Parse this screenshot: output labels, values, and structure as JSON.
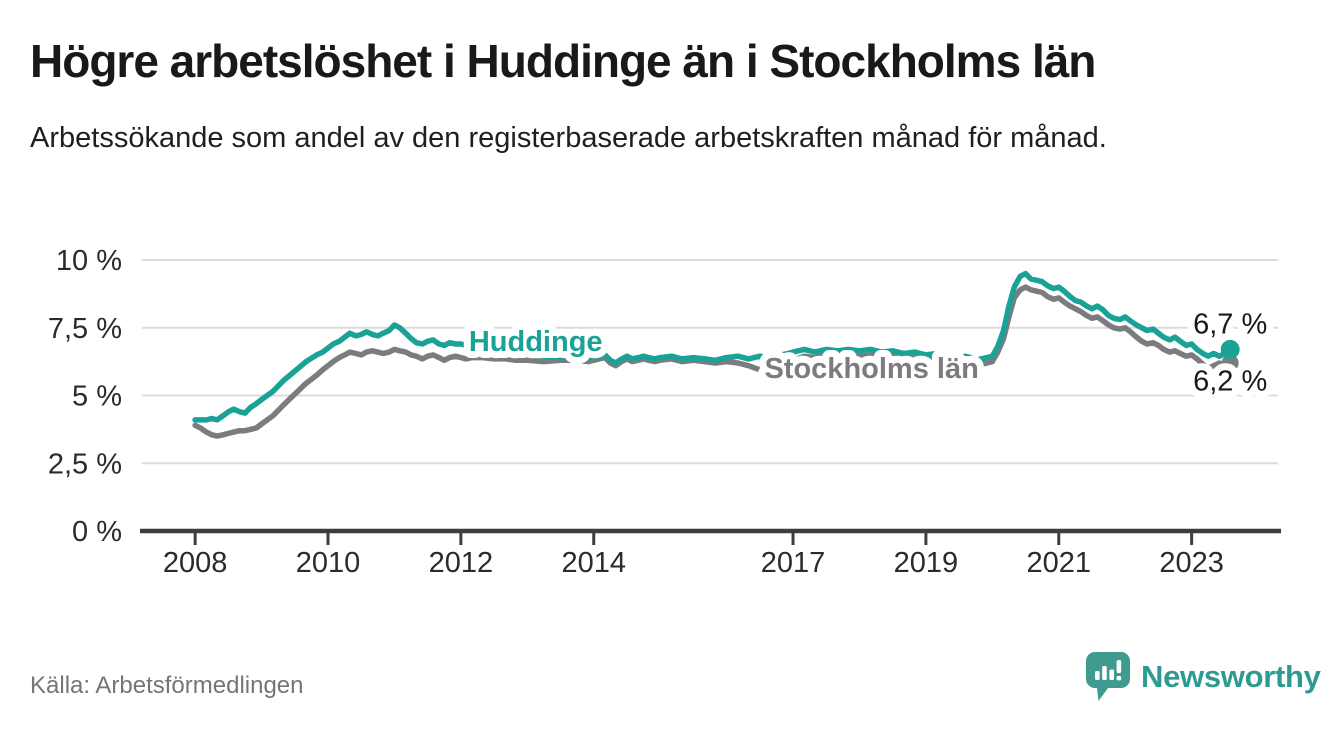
{
  "header": {
    "title": "Högre arbetslöshet i Huddinge än i Stockholms län",
    "subtitle": "Arbetssökande som andel av den registerbaserade arbetskraften månad för månad."
  },
  "footer": {
    "source": "Källa: Arbetsförmedlingen",
    "logo_text": "Newsworthy",
    "logo_icon": "newsworthy-speech-bubble-bar-chart-icon"
  },
  "colors": {
    "huddinge": "#1aa296",
    "stockholm": "#7c7c80",
    "grid": "#dcdcdc",
    "axis": "#3d3d3d",
    "text": "#191919",
    "tick_text": "#2b2b2b",
    "muted": "#757575",
    "logo": "#3f9b90"
  },
  "chart_data": {
    "type": "line",
    "title": "Högre arbetslöshet i Huddinge än i Stockholms län",
    "subtitle": "Arbetssökande som andel av den registerbaserade arbetskraften månad för månad.",
    "xlabel": "",
    "ylabel": "",
    "grid": "horizontal",
    "legend_position": "inline-labels",
    "xlim": [
      2007.2,
      2024.3
    ],
    "ylim": [
      0,
      10
    ],
    "x_ticks": [
      2008,
      2010,
      2012,
      2014,
      2017,
      2019,
      2021,
      2023
    ],
    "x_tick_labels": [
      "2008",
      "2010",
      "2012",
      "2014",
      "2017",
      "2019",
      "2021",
      "2023"
    ],
    "y_ticks": [
      0,
      2.5,
      5,
      7.5,
      10
    ],
    "y_tick_labels": [
      "0 %",
      "2,5 %",
      "5 %",
      "7,5 %",
      "10 %"
    ],
    "series": [
      {
        "name": "Stockholms län",
        "color": "#7c7c80",
        "end_label": "6,2 %",
        "end_value": 6.2,
        "end_label_y": 5.55,
        "dot_radius": 8.5,
        "label_pos": {
          "x": 2016.57,
          "y": 5.97
        },
        "points": [
          [
            2008.0,
            3.9
          ],
          [
            2008.08,
            3.8
          ],
          [
            2008.17,
            3.65
          ],
          [
            2008.25,
            3.55
          ],
          [
            2008.33,
            3.5
          ],
          [
            2008.42,
            3.55
          ],
          [
            2008.5,
            3.6
          ],
          [
            2008.58,
            3.65
          ],
          [
            2008.67,
            3.7
          ],
          [
            2008.75,
            3.7
          ],
          [
            2008.83,
            3.75
          ],
          [
            2008.92,
            3.8
          ],
          [
            2009.0,
            3.95
          ],
          [
            2009.17,
            4.25
          ],
          [
            2009.33,
            4.65
          ],
          [
            2009.5,
            5.05
          ],
          [
            2009.67,
            5.45
          ],
          [
            2009.83,
            5.75
          ],
          [
            2009.92,
            5.95
          ],
          [
            2010.0,
            6.1
          ],
          [
            2010.08,
            6.25
          ],
          [
            2010.17,
            6.4
          ],
          [
            2010.25,
            6.5
          ],
          [
            2010.33,
            6.6
          ],
          [
            2010.42,
            6.55
          ],
          [
            2010.5,
            6.5
          ],
          [
            2010.58,
            6.6
          ],
          [
            2010.67,
            6.65
          ],
          [
            2010.75,
            6.6
          ],
          [
            2010.83,
            6.55
          ],
          [
            2010.92,
            6.6
          ],
          [
            2011.0,
            6.7
          ],
          [
            2011.08,
            6.65
          ],
          [
            2011.17,
            6.6
          ],
          [
            2011.25,
            6.5
          ],
          [
            2011.33,
            6.45
          ],
          [
            2011.42,
            6.35
          ],
          [
            2011.5,
            6.45
          ],
          [
            2011.58,
            6.5
          ],
          [
            2011.67,
            6.4
          ],
          [
            2011.75,
            6.3
          ],
          [
            2011.83,
            6.4
          ],
          [
            2011.92,
            6.45
          ],
          [
            2012.0,
            6.4
          ],
          [
            2012.08,
            6.35
          ],
          [
            2012.17,
            6.4
          ],
          [
            2012.33,
            6.4
          ],
          [
            2012.5,
            6.35
          ],
          [
            2012.67,
            6.35
          ],
          [
            2012.83,
            6.3
          ],
          [
            2013.0,
            6.3
          ],
          [
            2013.25,
            6.25
          ],
          [
            2013.5,
            6.3
          ],
          [
            2013.75,
            6.3
          ],
          [
            2013.92,
            6.25
          ],
          [
            2014.08,
            6.35
          ],
          [
            2014.17,
            6.4
          ],
          [
            2014.25,
            6.2
          ],
          [
            2014.33,
            6.1
          ],
          [
            2014.42,
            6.25
          ],
          [
            2014.5,
            6.35
          ],
          [
            2014.58,
            6.25
          ],
          [
            2014.67,
            6.3
          ],
          [
            2014.75,
            6.35
          ],
          [
            2014.83,
            6.3
          ],
          [
            2014.92,
            6.25
          ],
          [
            2015.0,
            6.3
          ],
          [
            2015.17,
            6.35
          ],
          [
            2015.33,
            6.25
          ],
          [
            2015.5,
            6.3
          ],
          [
            2015.67,
            6.25
          ],
          [
            2015.83,
            6.2
          ],
          [
            2016.0,
            6.25
          ],
          [
            2016.17,
            6.2
          ],
          [
            2016.33,
            6.1
          ],
          [
            2016.5,
            5.95
          ],
          [
            2016.58,
            6.05
          ],
          [
            2016.67,
            6.1
          ],
          [
            2016.83,
            6.2
          ],
          [
            2017.0,
            6.3
          ],
          [
            2017.17,
            6.45
          ],
          [
            2017.33,
            6.4
          ],
          [
            2017.5,
            6.5
          ],
          [
            2017.67,
            6.45
          ],
          [
            2017.83,
            6.5
          ],
          [
            2018.0,
            6.45
          ],
          [
            2018.17,
            6.5
          ],
          [
            2018.33,
            6.4
          ],
          [
            2018.5,
            6.45
          ],
          [
            2018.67,
            6.35
          ],
          [
            2018.83,
            6.4
          ],
          [
            2019.0,
            6.3
          ],
          [
            2019.17,
            6.35
          ],
          [
            2019.33,
            6.2
          ],
          [
            2019.5,
            6.1
          ],
          [
            2019.58,
            6.25
          ],
          [
            2019.67,
            6.2
          ],
          [
            2019.75,
            6.1
          ],
          [
            2019.83,
            6.15
          ],
          [
            2019.92,
            6.2
          ],
          [
            2020.0,
            6.25
          ],
          [
            2020.08,
            6.6
          ],
          [
            2020.17,
            7.1
          ],
          [
            2020.25,
            7.9
          ],
          [
            2020.33,
            8.6
          ],
          [
            2020.42,
            8.9
          ],
          [
            2020.5,
            9.0
          ],
          [
            2020.58,
            8.9
          ],
          [
            2020.67,
            8.85
          ],
          [
            2020.75,
            8.8
          ],
          [
            2020.83,
            8.65
          ],
          [
            2020.92,
            8.55
          ],
          [
            2021.0,
            8.6
          ],
          [
            2021.08,
            8.45
          ],
          [
            2021.17,
            8.3
          ],
          [
            2021.25,
            8.2
          ],
          [
            2021.33,
            8.1
          ],
          [
            2021.42,
            7.95
          ],
          [
            2021.5,
            7.85
          ],
          [
            2021.58,
            7.9
          ],
          [
            2021.67,
            7.75
          ],
          [
            2021.75,
            7.6
          ],
          [
            2021.83,
            7.5
          ],
          [
            2021.92,
            7.45
          ],
          [
            2022.0,
            7.5
          ],
          [
            2022.08,
            7.35
          ],
          [
            2022.17,
            7.15
          ],
          [
            2022.25,
            7.0
          ],
          [
            2022.33,
            6.9
          ],
          [
            2022.42,
            6.95
          ],
          [
            2022.5,
            6.85
          ],
          [
            2022.58,
            6.7
          ],
          [
            2022.67,
            6.6
          ],
          [
            2022.75,
            6.65
          ],
          [
            2022.83,
            6.55
          ],
          [
            2022.92,
            6.45
          ],
          [
            2023.0,
            6.5
          ],
          [
            2023.08,
            6.35
          ],
          [
            2023.17,
            6.15
          ],
          [
            2023.25,
            6.0
          ],
          [
            2023.33,
            6.1
          ],
          [
            2023.42,
            6.2
          ],
          [
            2023.5,
            6.1
          ],
          [
            2023.58,
            6.2
          ]
        ]
      },
      {
        "name": "Huddinge",
        "color": "#1aa296",
        "end_label": "6,7 %",
        "end_value": 6.7,
        "end_label_y": 7.65,
        "dot_radius": 9.5,
        "label_pos": {
          "x": 2012.12,
          "y": 6.98
        },
        "points": [
          [
            2008.0,
            4.1
          ],
          [
            2008.08,
            4.1
          ],
          [
            2008.17,
            4.1
          ],
          [
            2008.25,
            4.15
          ],
          [
            2008.33,
            4.1
          ],
          [
            2008.42,
            4.25
          ],
          [
            2008.5,
            4.4
          ],
          [
            2008.58,
            4.5
          ],
          [
            2008.67,
            4.4
          ],
          [
            2008.75,
            4.35
          ],
          [
            2008.83,
            4.55
          ],
          [
            2008.92,
            4.7
          ],
          [
            2009.0,
            4.85
          ],
          [
            2009.17,
            5.15
          ],
          [
            2009.33,
            5.55
          ],
          [
            2009.5,
            5.9
          ],
          [
            2009.67,
            6.25
          ],
          [
            2009.83,
            6.5
          ],
          [
            2009.92,
            6.6
          ],
          [
            2010.0,
            6.75
          ],
          [
            2010.08,
            6.9
          ],
          [
            2010.17,
            7.0
          ],
          [
            2010.25,
            7.15
          ],
          [
            2010.33,
            7.3
          ],
          [
            2010.42,
            7.2
          ],
          [
            2010.5,
            7.25
          ],
          [
            2010.58,
            7.35
          ],
          [
            2010.67,
            7.25
          ],
          [
            2010.75,
            7.2
          ],
          [
            2010.83,
            7.3
          ],
          [
            2010.92,
            7.4
          ],
          [
            2011.0,
            7.6
          ],
          [
            2011.08,
            7.5
          ],
          [
            2011.17,
            7.3
          ],
          [
            2011.25,
            7.1
          ],
          [
            2011.33,
            6.95
          ],
          [
            2011.42,
            6.9
          ],
          [
            2011.5,
            7.0
          ],
          [
            2011.58,
            7.05
          ],
          [
            2011.67,
            6.9
          ],
          [
            2011.75,
            6.85
          ],
          [
            2011.83,
            6.95
          ],
          [
            2011.92,
            6.9
          ],
          [
            2012.0,
            6.9
          ],
          [
            2012.08,
            6.85
          ],
          [
            2012.17,
            6.9
          ],
          [
            2012.33,
            6.85
          ],
          [
            2012.5,
            6.75
          ],
          [
            2012.67,
            6.7
          ],
          [
            2012.83,
            6.6
          ],
          [
            2013.0,
            6.55
          ],
          [
            2013.25,
            6.45
          ],
          [
            2013.5,
            6.4
          ],
          [
            2013.75,
            6.45
          ],
          [
            2013.92,
            6.4
          ],
          [
            2014.08,
            6.45
          ],
          [
            2014.17,
            6.5
          ],
          [
            2014.25,
            6.3
          ],
          [
            2014.33,
            6.2
          ],
          [
            2014.42,
            6.35
          ],
          [
            2014.5,
            6.45
          ],
          [
            2014.58,
            6.35
          ],
          [
            2014.67,
            6.4
          ],
          [
            2014.75,
            6.45
          ],
          [
            2014.83,
            6.4
          ],
          [
            2014.92,
            6.35
          ],
          [
            2015.0,
            6.4
          ],
          [
            2015.17,
            6.45
          ],
          [
            2015.33,
            6.35
          ],
          [
            2015.5,
            6.4
          ],
          [
            2015.67,
            6.35
          ],
          [
            2015.83,
            6.3
          ],
          [
            2016.0,
            6.4
          ],
          [
            2016.17,
            6.45
          ],
          [
            2016.33,
            6.35
          ],
          [
            2016.5,
            6.45
          ],
          [
            2016.67,
            6.35
          ],
          [
            2016.83,
            6.5
          ],
          [
            2016.92,
            6.55
          ],
          [
            2017.0,
            6.6
          ],
          [
            2017.17,
            6.7
          ],
          [
            2017.33,
            6.6
          ],
          [
            2017.5,
            6.7
          ],
          [
            2017.67,
            6.65
          ],
          [
            2017.83,
            6.7
          ],
          [
            2018.0,
            6.65
          ],
          [
            2018.17,
            6.7
          ],
          [
            2018.33,
            6.6
          ],
          [
            2018.5,
            6.65
          ],
          [
            2018.67,
            6.55
          ],
          [
            2018.83,
            6.6
          ],
          [
            2019.0,
            6.5
          ],
          [
            2019.17,
            6.55
          ],
          [
            2019.33,
            6.4
          ],
          [
            2019.5,
            6.3
          ],
          [
            2019.58,
            6.45
          ],
          [
            2019.67,
            6.4
          ],
          [
            2019.75,
            6.3
          ],
          [
            2019.83,
            6.35
          ],
          [
            2019.92,
            6.4
          ],
          [
            2020.0,
            6.45
          ],
          [
            2020.08,
            6.8
          ],
          [
            2020.17,
            7.4
          ],
          [
            2020.25,
            8.3
          ],
          [
            2020.33,
            9.0
          ],
          [
            2020.42,
            9.4
          ],
          [
            2020.5,
            9.5
          ],
          [
            2020.58,
            9.3
          ],
          [
            2020.67,
            9.25
          ],
          [
            2020.75,
            9.2
          ],
          [
            2020.83,
            9.05
          ],
          [
            2020.92,
            8.95
          ],
          [
            2021.0,
            9.0
          ],
          [
            2021.08,
            8.85
          ],
          [
            2021.17,
            8.65
          ],
          [
            2021.25,
            8.5
          ],
          [
            2021.33,
            8.45
          ],
          [
            2021.42,
            8.3
          ],
          [
            2021.5,
            8.2
          ],
          [
            2021.58,
            8.3
          ],
          [
            2021.67,
            8.15
          ],
          [
            2021.75,
            7.95
          ],
          [
            2021.83,
            7.85
          ],
          [
            2021.92,
            7.8
          ],
          [
            2022.0,
            7.9
          ],
          [
            2022.08,
            7.75
          ],
          [
            2022.17,
            7.6
          ],
          [
            2022.25,
            7.5
          ],
          [
            2022.33,
            7.4
          ],
          [
            2022.42,
            7.45
          ],
          [
            2022.5,
            7.3
          ],
          [
            2022.58,
            7.15
          ],
          [
            2022.67,
            7.05
          ],
          [
            2022.75,
            7.15
          ],
          [
            2022.83,
            7.0
          ],
          [
            2022.92,
            6.85
          ],
          [
            2023.0,
            6.9
          ],
          [
            2023.08,
            6.7
          ],
          [
            2023.17,
            6.55
          ],
          [
            2023.25,
            6.45
          ],
          [
            2023.33,
            6.55
          ],
          [
            2023.42,
            6.45
          ],
          [
            2023.5,
            6.55
          ],
          [
            2023.58,
            6.7
          ]
        ]
      }
    ]
  }
}
